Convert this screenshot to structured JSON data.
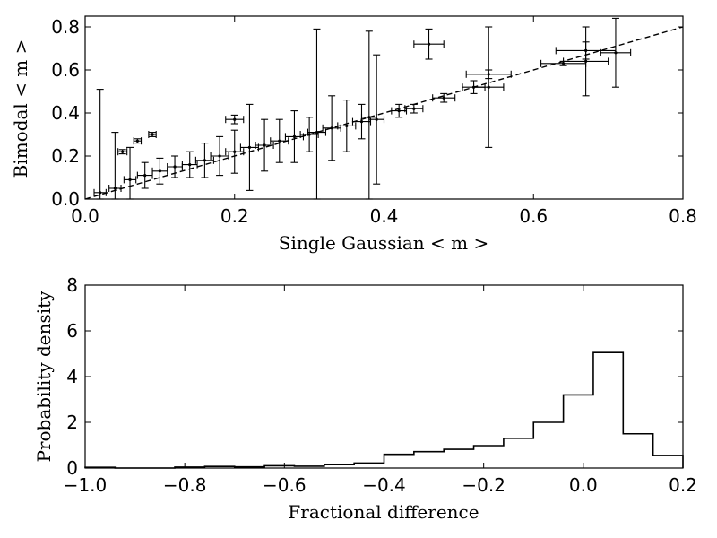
{
  "chart_data": [
    {
      "type": "scatter",
      "title": "",
      "xlabel": "Single Gaussian  < m >",
      "ylabel": "Bimodal  < m >",
      "xlim": [
        0.0,
        0.8
      ],
      "ylim": [
        0.0,
        0.85
      ],
      "xticks": [
        0.0,
        0.2,
        0.4,
        0.6,
        0.8
      ],
      "xtick_labels": [
        "0.0",
        "0.2",
        "0.4",
        "0.6",
        "0.8"
      ],
      "yticks": [
        0.0,
        0.2,
        0.4,
        0.6,
        0.8
      ],
      "ytick_labels": [
        "0.0",
        "0.2",
        "0.4",
        "0.6",
        "0.8"
      ],
      "reference_line": {
        "style": "dashed",
        "x": [
          0.0,
          0.8
        ],
        "y": [
          0.0,
          0.8
        ]
      },
      "points": [
        {
          "x": 0.02,
          "y": 0.03,
          "xerr": 0.008,
          "yerr": 0.48
        },
        {
          "x": 0.04,
          "y": 0.05,
          "xerr": 0.008,
          "yerr": 0.26
        },
        {
          "x": 0.05,
          "y": 0.22,
          "xerr": 0.006,
          "yerr": 0.01
        },
        {
          "x": 0.06,
          "y": 0.09,
          "xerr": 0.008,
          "yerr": 0.15
        },
        {
          "x": 0.07,
          "y": 0.27,
          "xerr": 0.005,
          "yerr": 0.01
        },
        {
          "x": 0.09,
          "y": 0.3,
          "xerr": 0.005,
          "yerr": 0.01
        },
        {
          "x": 0.08,
          "y": 0.11,
          "xerr": 0.01,
          "yerr": 0.06
        },
        {
          "x": 0.1,
          "y": 0.13,
          "xerr": 0.01,
          "yerr": 0.06
        },
        {
          "x": 0.12,
          "y": 0.15,
          "xerr": 0.01,
          "yerr": 0.05
        },
        {
          "x": 0.14,
          "y": 0.16,
          "xerr": 0.01,
          "yerr": 0.06
        },
        {
          "x": 0.16,
          "y": 0.18,
          "xerr": 0.012,
          "yerr": 0.08
        },
        {
          "x": 0.18,
          "y": 0.2,
          "xerr": 0.012,
          "yerr": 0.09
        },
        {
          "x": 0.2,
          "y": 0.22,
          "xerr": 0.012,
          "yerr": 0.1
        },
        {
          "x": 0.2,
          "y": 0.37,
          "xerr": 0.012,
          "yerr": 0.02
        },
        {
          "x": 0.22,
          "y": 0.24,
          "xerr": 0.012,
          "yerr": 0.2
        },
        {
          "x": 0.24,
          "y": 0.25,
          "xerr": 0.012,
          "yerr": 0.12
        },
        {
          "x": 0.26,
          "y": 0.27,
          "xerr": 0.012,
          "yerr": 0.1
        },
        {
          "x": 0.28,
          "y": 0.29,
          "xerr": 0.012,
          "yerr": 0.12
        },
        {
          "x": 0.3,
          "y": 0.3,
          "xerr": 0.012,
          "yerr": 0.08
        },
        {
          "x": 0.31,
          "y": 0.31,
          "xerr": 0.012,
          "yerr": 0.48
        },
        {
          "x": 0.33,
          "y": 0.33,
          "xerr": 0.012,
          "yerr": 0.15
        },
        {
          "x": 0.35,
          "y": 0.34,
          "xerr": 0.012,
          "yerr": 0.12
        },
        {
          "x": 0.37,
          "y": 0.36,
          "xerr": 0.012,
          "yerr": 0.08
        },
        {
          "x": 0.38,
          "y": 0.38,
          "xerr": 0.01,
          "yerr": 0.4
        },
        {
          "x": 0.39,
          "y": 0.37,
          "xerr": 0.01,
          "yerr": 0.3
        },
        {
          "x": 0.42,
          "y": 0.41,
          "xerr": 0.01,
          "yerr": 0.03
        },
        {
          "x": 0.44,
          "y": 0.42,
          "xerr": 0.012,
          "yerr": 0.02
        },
        {
          "x": 0.46,
          "y": 0.72,
          "xerr": 0.02,
          "yerr": 0.07
        },
        {
          "x": 0.48,
          "y": 0.47,
          "xerr": 0.015,
          "yerr": 0.02
        },
        {
          "x": 0.52,
          "y": 0.52,
          "xerr": 0.015,
          "yerr": 0.03
        },
        {
          "x": 0.54,
          "y": 0.52,
          "xerr": 0.02,
          "yerr": 0.28
        },
        {
          "x": 0.54,
          "y": 0.58,
          "xerr": 0.03,
          "yerr": 0.02
        },
        {
          "x": 0.64,
          "y": 0.63,
          "xerr": 0.03,
          "yerr": 0.01
        },
        {
          "x": 0.67,
          "y": 0.64,
          "xerr": 0.03,
          "yerr": 0.16
        },
        {
          "x": 0.67,
          "y": 0.69,
          "xerr": 0.04,
          "yerr": 0.04
        },
        {
          "x": 0.71,
          "y": 0.68,
          "xerr": 0.02,
          "yerr": 0.16
        }
      ]
    },
    {
      "type": "histogram",
      "title": "",
      "xlabel": "Fractional difference",
      "ylabel": "Probability density",
      "xlim": [
        -1.0,
        0.2
      ],
      "ylim": [
        0,
        8
      ],
      "xticks": [
        -1.0,
        -0.8,
        -0.6,
        -0.4,
        -0.2,
        0.0,
        0.2
      ],
      "xtick_labels": [
        "−1.0",
        "−0.8",
        "−0.6",
        "−0.4",
        "−0.2",
        "0.0",
        "0.2"
      ],
      "yticks": [
        0,
        2,
        4,
        6,
        8
      ],
      "ytick_labels": [
        "0",
        "2",
        "4",
        "6",
        "8"
      ],
      "bin_edges": [
        -1.0,
        -0.94,
        -0.88,
        -0.82,
        -0.76,
        -0.7,
        -0.64,
        -0.58,
        -0.52,
        -0.46,
        -0.4,
        -0.34,
        -0.28,
        -0.22,
        -0.16,
        -0.1,
        -0.04,
        0.02,
        0.08,
        0.14
      ],
      "values": [
        0.03,
        0.0,
        0.0,
        0.04,
        0.07,
        0.05,
        0.1,
        0.08,
        0.15,
        0.22,
        0.6,
        0.72,
        0.82,
        0.98,
        1.3,
        2.0,
        3.2,
        5.05,
        1.5,
        0.55
      ]
    }
  ]
}
